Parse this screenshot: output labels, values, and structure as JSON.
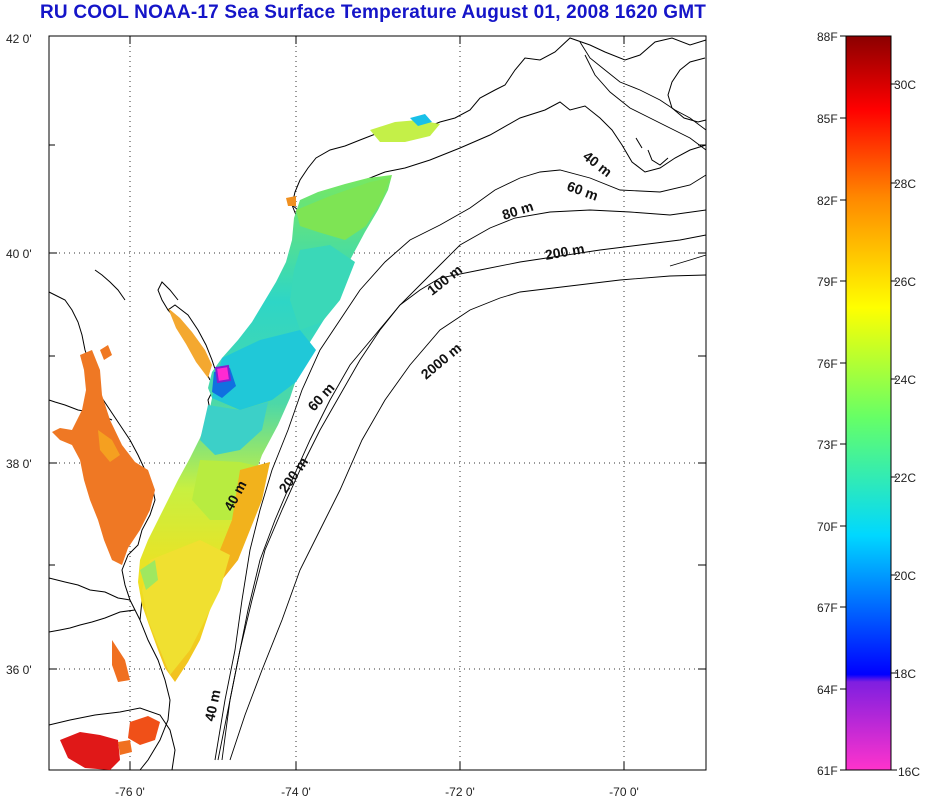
{
  "title": "RU COOL  NOAA-17 Sea Surface Temperature August 01, 2008 1620 GMT",
  "map": {
    "lat_labels": [
      "42 0'",
      "40 0'",
      "38 0'",
      "36 0'"
    ],
    "lon_labels": [
      "-76 0'",
      "-74 0'",
      "-72 0'",
      "-70 0'"
    ],
    "isobath_labels": [
      "40 m",
      "60 m",
      "80 m",
      "200 m",
      "100 m",
      "2000 m",
      "60 m",
      "200 m",
      "40 m",
      "40 m"
    ]
  },
  "colorbar": {
    "fahrenheit_labels": [
      "88F",
      "85F",
      "82F",
      "79F",
      "76F",
      "73F",
      "70F",
      "67F",
      "64F",
      "61F"
    ],
    "celsius_labels": [
      "30C",
      "28C",
      "26C",
      "24C",
      "22C",
      "20C",
      "18C",
      "16C"
    ],
    "colors": [
      "#ff33cc",
      "#7f1fe0",
      "#0000ff",
      "#00d8ff",
      "#66ff66",
      "#ffff00",
      "#ff8800",
      "#ff0000",
      "#8b0000"
    ]
  }
}
